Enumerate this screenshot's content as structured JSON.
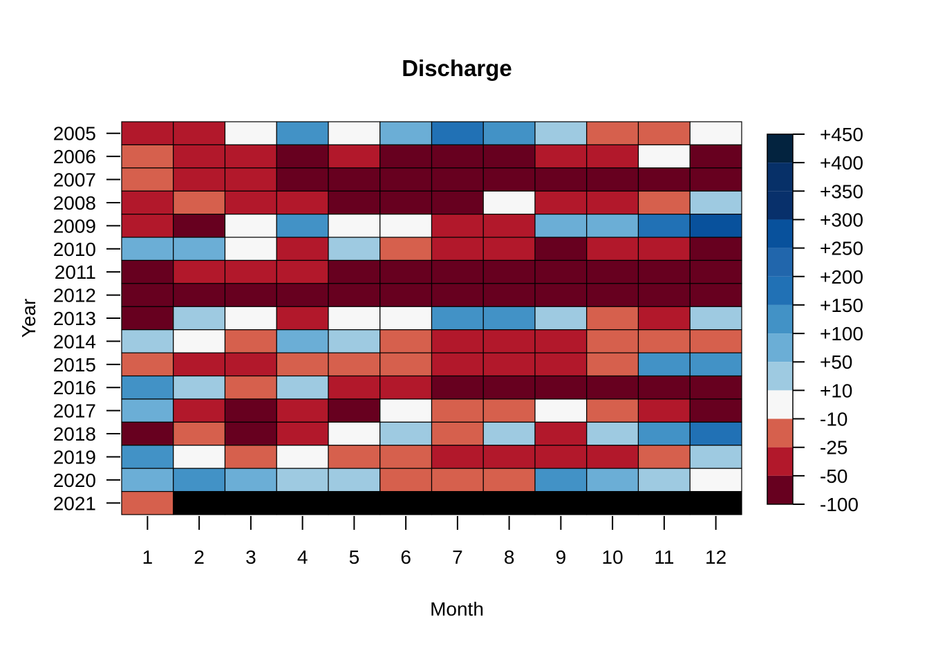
{
  "chart_data": {
    "type": "heatmap",
    "title": "Discharge",
    "xlabel": "Month",
    "ylabel": "Year",
    "x_categories": [
      "1",
      "2",
      "3",
      "4",
      "5",
      "6",
      "7",
      "8",
      "9",
      "10",
      "11",
      "12"
    ],
    "y_categories": [
      "2005",
      "2006",
      "2007",
      "2008",
      "2009",
      "2010",
      "2011",
      "2012",
      "2013",
      "2014",
      "2015",
      "2016",
      "2017",
      "2018",
      "2019",
      "2020",
      "2021"
    ],
    "color_bins": [
      {
        "label": "-100",
        "range": [
          -100,
          -50
        ],
        "color": "#67001F"
      },
      {
        "label": "-50",
        "range": [
          -50,
          -25
        ],
        "color": "#B2182B"
      },
      {
        "label": "-25",
        "range": [
          -25,
          -10
        ],
        "color": "#D6604D"
      },
      {
        "label": "-10",
        "range": [
          -10,
          10
        ],
        "color": "#F7F7F7"
      },
      {
        "label": "+10",
        "range": [
          10,
          50
        ],
        "color": "#9ECAE1"
      },
      {
        "label": "+50",
        "range": [
          50,
          100
        ],
        "color": "#6BAED6"
      },
      {
        "label": "+100",
        "range": [
          100,
          150
        ],
        "color": "#4292C6"
      },
      {
        "label": "+150",
        "range": [
          150,
          200
        ],
        "color": "#2171B5"
      },
      {
        "label": "+200",
        "range": [
          200,
          250
        ],
        "color": "#2166AC"
      },
      {
        "label": "+250",
        "range": [
          250,
          300
        ],
        "color": "#08519C"
      },
      {
        "label": "+300",
        "range": [
          300,
          350
        ],
        "color": "#08306B"
      },
      {
        "label": "+350",
        "range": [
          350,
          400
        ],
        "color": "#073068"
      },
      {
        "label": "+400",
        "range": [
          400,
          450
        ],
        "color": "#03233F"
      }
    ],
    "legend_labels": [
      "+450",
      "+400",
      "+350",
      "+300",
      "+250",
      "+200",
      "+150",
      "+100",
      "+50",
      "+10",
      "-10",
      "-25",
      "-50",
      "-100"
    ],
    "missing_color": "#000000",
    "cell_bins": [
      [
        1,
        1,
        3,
        6,
        3,
        5,
        7,
        6,
        4,
        2,
        2,
        3
      ],
      [
        2,
        1,
        1,
        0,
        1,
        0,
        0,
        0,
        1,
        1,
        3,
        0
      ],
      [
        2,
        1,
        1,
        0,
        0,
        0,
        0,
        0,
        0,
        0,
        0,
        0
      ],
      [
        1,
        2,
        1,
        1,
        0,
        0,
        0,
        3,
        1,
        1,
        2,
        4
      ],
      [
        1,
        0,
        3,
        6,
        3,
        3,
        1,
        1,
        5,
        5,
        7,
        9
      ],
      [
        5,
        5,
        3,
        1,
        4,
        2,
        1,
        1,
        0,
        1,
        1,
        0
      ],
      [
        0,
        1,
        1,
        1,
        0,
        0,
        0,
        0,
        0,
        0,
        0,
        0
      ],
      [
        0,
        0,
        0,
        0,
        0,
        0,
        0,
        0,
        0,
        0,
        0,
        0
      ],
      [
        0,
        4,
        3,
        1,
        3,
        3,
        6,
        6,
        4,
        2,
        1,
        4
      ],
      [
        4,
        3,
        2,
        5,
        4,
        2,
        1,
        1,
        1,
        2,
        2,
        2
      ],
      [
        2,
        1,
        1,
        2,
        2,
        2,
        1,
        1,
        1,
        2,
        6,
        6
      ],
      [
        6,
        4,
        2,
        4,
        1,
        1,
        0,
        0,
        0,
        0,
        0,
        0
      ],
      [
        5,
        1,
        0,
        1,
        0,
        3,
        2,
        2,
        3,
        2,
        1,
        0
      ],
      [
        0,
        2,
        0,
        1,
        3,
        4,
        2,
        4,
        1,
        4,
        6,
        7
      ],
      [
        6,
        3,
        2,
        3,
        2,
        2,
        1,
        1,
        1,
        1,
        2,
        4
      ],
      [
        5,
        6,
        5,
        4,
        4,
        2,
        2,
        2,
        6,
        5,
        4,
        3
      ],
      [
        2,
        null,
        null,
        null,
        null,
        null,
        null,
        null,
        null,
        null,
        null,
        null
      ]
    ]
  }
}
